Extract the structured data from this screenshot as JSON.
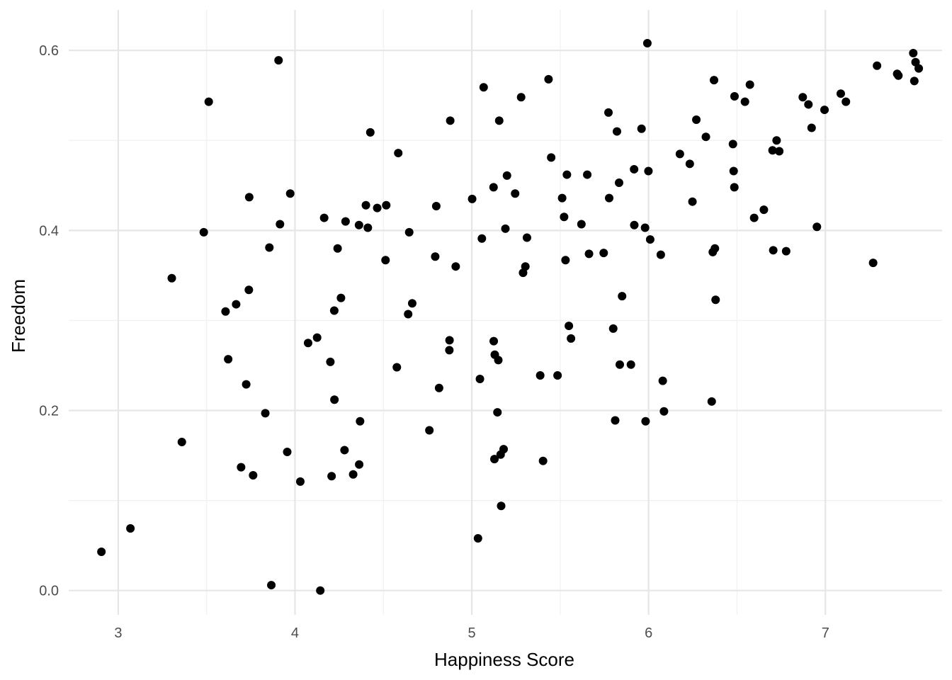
{
  "chart_data": {
    "type": "scatter",
    "title": "",
    "xlabel": "Happiness Score",
    "ylabel": "Freedom",
    "xlim": [
      2.72,
      7.66
    ],
    "ylim": [
      -0.027,
      0.645
    ],
    "x_ticks": [
      3,
      4,
      5,
      6,
      7
    ],
    "x_tick_labels": [
      "3",
      "4",
      "5",
      "6",
      "7"
    ],
    "y_ticks": [
      0.0,
      0.2,
      0.4,
      0.6
    ],
    "y_tick_labels": [
      "0.0",
      "0.2",
      "0.4",
      "0.6"
    ],
    "grid": true,
    "legend": "none",
    "point_color": "#000000",
    "points": [
      [
        2.905,
        0.043
      ],
      [
        3.069,
        0.069
      ],
      [
        3.303,
        0.347
      ],
      [
        3.36,
        0.165
      ],
      [
        3.484,
        0.398
      ],
      [
        3.512,
        0.543
      ],
      [
        3.607,
        0.31
      ],
      [
        3.622,
        0.257
      ],
      [
        3.667,
        0.318
      ],
      [
        3.695,
        0.137
      ],
      [
        3.724,
        0.229
      ],
      [
        3.739,
        0.334
      ],
      [
        3.741,
        0.437
      ],
      [
        3.763,
        0.128
      ],
      [
        3.832,
        0.197
      ],
      [
        3.855,
        0.381
      ],
      [
        3.866,
        0.006
      ],
      [
        3.907,
        0.589
      ],
      [
        3.915,
        0.407
      ],
      [
        3.956,
        0.154
      ],
      [
        3.973,
        0.441
      ],
      [
        4.03,
        0.121
      ],
      [
        4.074,
        0.275
      ],
      [
        4.125,
        0.281
      ],
      [
        4.143,
        0.0
      ],
      [
        4.165,
        0.414
      ],
      [
        4.2,
        0.254
      ],
      [
        4.207,
        0.127
      ],
      [
        4.222,
        0.311
      ],
      [
        4.223,
        0.212
      ],
      [
        4.241,
        0.38
      ],
      [
        4.26,
        0.325
      ],
      [
        4.28,
        0.156
      ],
      [
        4.286,
        0.41
      ],
      [
        4.329,
        0.129
      ],
      [
        4.362,
        0.406
      ],
      [
        4.363,
        0.14
      ],
      [
        4.368,
        0.188
      ],
      [
        4.401,
        0.428
      ],
      [
        4.412,
        0.403
      ],
      [
        4.426,
        0.509
      ],
      [
        4.465,
        0.425
      ],
      [
        4.512,
        0.367
      ],
      [
        4.516,
        0.428
      ],
      [
        4.576,
        0.248
      ],
      [
        4.584,
        0.486
      ],
      [
        4.64,
        0.307
      ],
      [
        4.646,
        0.398
      ],
      [
        4.663,
        0.319
      ],
      [
        4.76,
        0.178
      ],
      [
        4.793,
        0.371
      ],
      [
        4.799,
        0.427
      ],
      [
        4.815,
        0.225
      ],
      [
        4.873,
        0.267
      ],
      [
        4.874,
        0.278
      ],
      [
        4.878,
        0.522
      ],
      [
        4.909,
        0.36
      ],
      [
        5.002,
        0.435
      ],
      [
        5.035,
        0.058
      ],
      [
        5.046,
        0.235
      ],
      [
        5.057,
        0.391
      ],
      [
        5.067,
        0.559
      ],
      [
        5.124,
        0.277
      ],
      [
        5.123,
        0.448
      ],
      [
        5.13,
        0.262
      ],
      [
        5.128,
        0.146
      ],
      [
        5.145,
        0.198
      ],
      [
        5.15,
        0.256
      ],
      [
        5.155,
        0.522
      ],
      [
        5.163,
        0.151
      ],
      [
        5.166,
        0.094
      ],
      [
        5.18,
        0.157
      ],
      [
        5.19,
        0.402
      ],
      [
        5.199,
        0.461
      ],
      [
        5.245,
        0.441
      ],
      [
        5.279,
        0.548
      ],
      [
        5.29,
        0.353
      ],
      [
        5.303,
        0.36
      ],
      [
        5.312,
        0.392
      ],
      [
        5.387,
        0.239
      ],
      [
        5.403,
        0.144
      ],
      [
        5.434,
        0.568
      ],
      [
        5.449,
        0.481
      ],
      [
        5.485,
        0.239
      ],
      [
        5.511,
        0.436
      ],
      [
        5.522,
        0.415
      ],
      [
        5.53,
        0.367
      ],
      [
        5.538,
        0.462
      ],
      [
        5.549,
        0.294
      ],
      [
        5.561,
        0.28
      ],
      [
        5.62,
        0.407
      ],
      [
        5.653,
        0.462
      ],
      [
        5.663,
        0.374
      ],
      [
        5.746,
        0.375
      ],
      [
        5.773,
        0.531
      ],
      [
        5.777,
        0.436
      ],
      [
        5.8,
        0.291
      ],
      [
        5.811,
        0.189
      ],
      [
        5.821,
        0.51
      ],
      [
        5.833,
        0.453
      ],
      [
        5.837,
        0.251
      ],
      [
        5.85,
        0.327
      ],
      [
        5.9,
        0.251
      ],
      [
        5.918,
        0.468
      ],
      [
        5.919,
        0.406
      ],
      [
        5.96,
        0.513
      ],
      [
        5.98,
        0.403
      ],
      [
        5.983,
        0.188
      ],
      [
        5.993,
        0.608
      ],
      [
        5.999,
        0.466
      ],
      [
        6.009,
        0.39
      ],
      [
        6.069,
        0.373
      ],
      [
        6.08,
        0.233
      ],
      [
        6.087,
        0.199
      ],
      [
        6.177,
        0.485
      ],
      [
        6.233,
        0.474
      ],
      [
        6.248,
        0.432
      ],
      [
        6.27,
        0.523
      ],
      [
        6.324,
        0.504
      ],
      [
        6.357,
        0.21
      ],
      [
        6.363,
        0.376
      ],
      [
        6.37,
        0.567
      ],
      [
        6.375,
        0.38
      ],
      [
        6.379,
        0.323
      ],
      [
        6.477,
        0.496
      ],
      [
        6.481,
        0.466
      ],
      [
        6.485,
        0.448
      ],
      [
        6.486,
        0.549
      ],
      [
        6.545,
        0.543
      ],
      [
        6.573,
        0.562
      ],
      [
        6.597,
        0.414
      ],
      [
        6.652,
        0.423
      ],
      [
        6.701,
        0.489
      ],
      [
        6.705,
        0.378
      ],
      [
        6.724,
        0.5
      ],
      [
        6.739,
        0.488
      ],
      [
        6.778,
        0.377
      ],
      [
        6.872,
        0.548
      ],
      [
        6.904,
        0.54
      ],
      [
        6.922,
        0.514
      ],
      [
        6.952,
        0.404
      ],
      [
        6.995,
        0.534
      ],
      [
        7.087,
        0.552
      ],
      [
        7.116,
        0.543
      ],
      [
        7.27,
        0.364
      ],
      [
        7.292,
        0.583
      ],
      [
        7.406,
        0.574
      ],
      [
        7.413,
        0.572
      ],
      [
        7.497,
        0.597
      ],
      [
        7.503,
        0.566
      ],
      [
        7.51,
        0.587
      ],
      [
        7.528,
        0.58
      ]
    ]
  }
}
